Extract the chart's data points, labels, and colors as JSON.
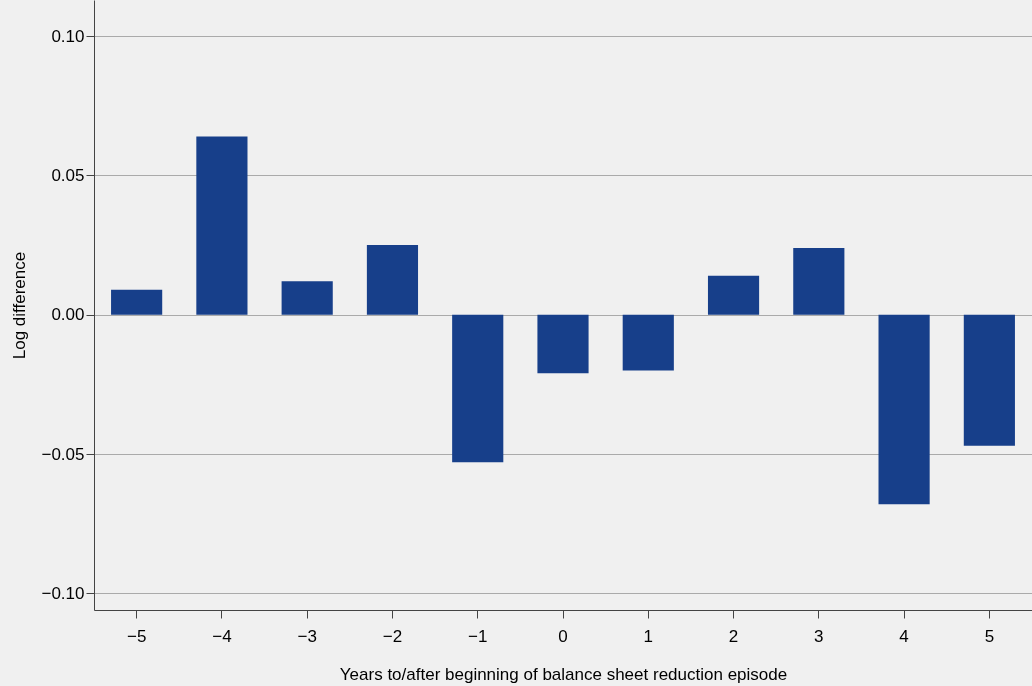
{
  "chart_data": {
    "type": "bar",
    "xlabel": "Years to/after beginning of balance sheet reduction episode",
    "ylabel": "Log difference",
    "categories": [
      "−5",
      "−4",
      "−3",
      "−2",
      "−1",
      "0",
      "1",
      "2",
      "3",
      "4",
      "5"
    ],
    "values": [
      0.009,
      0.064,
      0.012,
      0.025,
      -0.053,
      -0.021,
      -0.02,
      0.014,
      0.024,
      -0.068,
      -0.047
    ],
    "color": "#173f8a",
    "ylim": [
      -0.106,
      0.113
    ],
    "yticks": [
      {
        "value": -0.1,
        "label": "−0.10"
      },
      {
        "value": -0.05,
        "label": "−0.05"
      },
      {
        "value": 0,
        "label": "0.00"
      },
      {
        "value": 0.05,
        "label": "0.05"
      },
      {
        "value": 0.1,
        "label": "0.10"
      }
    ],
    "grid": "y"
  }
}
